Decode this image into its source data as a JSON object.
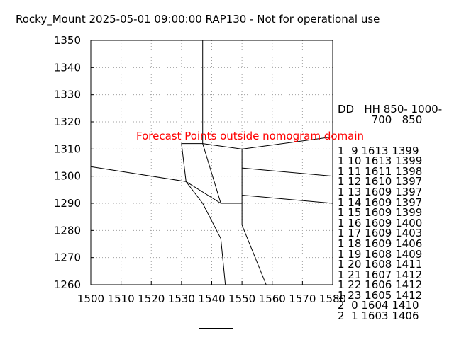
{
  "title": "Rocky_Mount 2025-05-01 09:00:00 RAP130 - Not for operational use",
  "chart_data": {
    "type": "line",
    "title": "Rocky_Mount 2025-05-01 09:00:00 RAP130 - Not for operational use",
    "xlabel": "",
    "ylabel": "",
    "xlim": [
      1500,
      1580
    ],
    "ylim": [
      1260,
      1350
    ],
    "grid": true,
    "x_ticks": [
      1500,
      1510,
      1520,
      1530,
      1540,
      1550,
      1560,
      1570,
      1580
    ],
    "y_ticks": [
      1260,
      1270,
      1280,
      1290,
      1300,
      1310,
      1320,
      1330,
      1340,
      1350
    ],
    "annotation": "Forecast Points outside nomogram domain",
    "annotation_color": "#ff0000",
    "nomogram_lines": [
      [
        [
          1500,
          1303.5
        ],
        [
          1531.5,
          1298
        ],
        [
          1530,
          1312
        ],
        [
          1537,
          1312
        ],
        [
          1550,
          1310
        ],
        [
          1580,
          1314.5
        ]
      ],
      [
        [
          1537,
          1350
        ],
        [
          1537,
          1312
        ],
        [
          1543,
          1290
        ],
        [
          1550,
          1290
        ],
        [
          1550,
          1310
        ]
      ],
      [
        [
          1531.5,
          1298
        ],
        [
          1543,
          1290
        ]
      ],
      [
        [
          1531.5,
          1298
        ],
        [
          1537,
          1290
        ],
        [
          1543,
          1277
        ],
        [
          1544.5,
          1260
        ]
      ],
      [
        [
          1550,
          1303
        ],
        [
          1580,
          1300
        ]
      ],
      [
        [
          1550,
          1293
        ],
        [
          1580,
          1290
        ]
      ],
      [
        [
          1550,
          1290
        ],
        [
          1550,
          1282
        ],
        [
          1558,
          1260
        ]
      ]
    ],
    "legend_header": [
      "DD   HH 850- 1000-",
      "          700   850"
    ],
    "table_rows": [
      "1  9 1613 1399",
      "1 10 1613 1399",
      "1 11 1611 1398",
      "1 12 1610 1397",
      "1 13 1609 1397",
      "1 14 1609 1397",
      "1 15 1609 1399",
      "1 16 1609 1400",
      "1 17 1609 1403",
      "1 18 1609 1406",
      "1 19 1608 1409",
      "1 20 1608 1411",
      "1 21 1607 1412",
      "1 22 1606 1412",
      "1 23 1605 1412",
      "2  0 1604 1410",
      "2  1 1603 1406"
    ]
  }
}
